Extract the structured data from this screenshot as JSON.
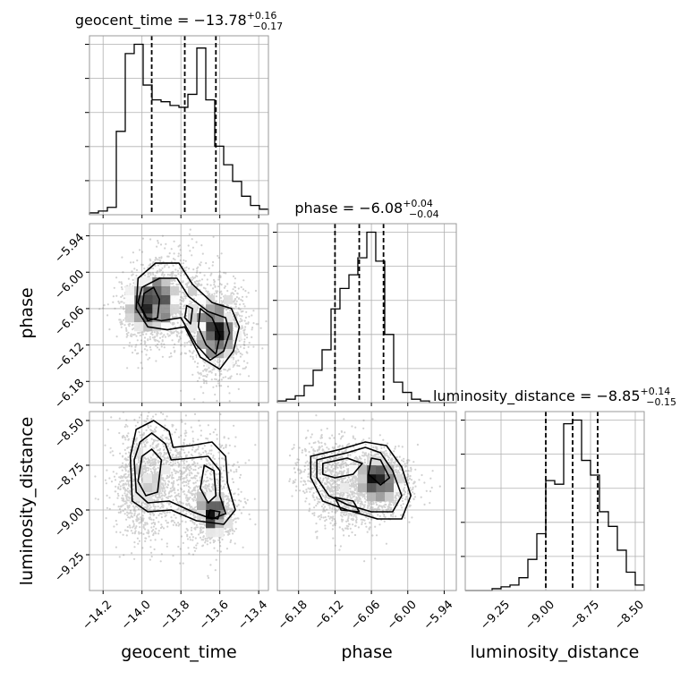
{
  "chart_data": {
    "type": "corner",
    "parameters": [
      {
        "name": "geocent_time",
        "axis_label": "geocent_time",
        "title": {
          "prefix": "geocent_time = ",
          "value": "−13.78",
          "plus": "+0.16",
          "minus": "−0.17"
        },
        "range": [
          -14.27,
          -13.35
        ],
        "ticks": [
          -14.2,
          -14.0,
          -13.8,
          -13.6,
          -13.4
        ],
        "tick_labels": [
          "−14.2",
          "−14.0",
          "−13.8",
          "−13.6",
          "−13.4"
        ],
        "quantiles": [
          -13.95,
          -13.78,
          -13.62
        ],
        "hist": {
          "edges": [
            -14.27,
            -14.224,
            -14.178,
            -14.132,
            -14.086,
            -14.04,
            -13.994,
            -13.948,
            -13.902,
            -13.856,
            -13.81,
            -13.764,
            -13.718,
            -13.672,
            -13.626,
            -13.58,
            -13.534,
            -13.488,
            -13.442,
            -13.396,
            -13.35
          ],
          "values": [
            0.01,
            0.02,
            0.04,
            0.45,
            0.87,
            0.92,
            0.7,
            0.62,
            0.61,
            0.59,
            0.58,
            0.65,
            0.9,
            0.62,
            0.37,
            0.27,
            0.18,
            0.1,
            0.05,
            0.03
          ]
        }
      },
      {
        "name": "phase",
        "axis_label": "phase",
        "title": {
          "prefix": "phase = ",
          "value": "−6.08",
          "plus": "+0.04",
          "minus": "−0.04"
        },
        "range": [
          -6.215,
          -5.92
        ],
        "ticks": [
          -6.18,
          -6.12,
          -6.06,
          -6.0,
          -5.94
        ],
        "tick_labels": [
          "−6.18",
          "−6.12",
          "−6.06",
          "−6.00",
          "−5.94"
        ],
        "quantiles": [
          -6.12,
          -6.08,
          -6.04
        ],
        "hist": {
          "edges": [
            -6.215,
            -6.2003,
            -6.1855,
            -6.1708,
            -6.156,
            -6.1413,
            -6.1265,
            -6.1118,
            -6.097,
            -6.0823,
            -6.0675,
            -6.0528,
            -6.038,
            -6.0233,
            -6.0085,
            -5.9938,
            -5.979,
            -5.9643,
            -5.9495,
            -5.9348,
            -5.92
          ],
          "values": [
            0.01,
            0.02,
            0.04,
            0.1,
            0.19,
            0.31,
            0.55,
            0.67,
            0.75,
            0.85,
            1.0,
            0.83,
            0.4,
            0.12,
            0.06,
            0.02,
            0.01,
            0,
            0,
            0
          ]
        }
      },
      {
        "name": "luminosity_distance",
        "axis_label": "luminosity_distance",
        "title": {
          "prefix": "luminosity_distance = ",
          "value": "−8.85",
          "plus": "+0.14",
          "minus": "−0.15"
        },
        "range": [
          -9.45,
          -8.45
        ],
        "ticks": [
          -9.25,
          -9.0,
          -8.75,
          -8.5
        ],
        "tick_labels": [
          "−9.25",
          "−9.00",
          "−8.75",
          "−8.50"
        ],
        "quantiles": [
          -9.0,
          -8.85,
          -8.71
        ],
        "hist": {
          "edges": [
            -9.45,
            -9.4,
            -9.35,
            -9.3,
            -9.25,
            -9.2,
            -9.15,
            -9.1,
            -9.05,
            -9.0,
            -8.95,
            -8.9,
            -8.85,
            -8.8,
            -8.75,
            -8.7,
            -8.65,
            -8.6,
            -8.55,
            -8.5,
            -8.45
          ],
          "values": [
            0,
            0,
            0,
            0.01,
            0.02,
            0.03,
            0.07,
            0.17,
            0.31,
            0.6,
            0.58,
            0.91,
            0.93,
            0.71,
            0.63,
            0.43,
            0.35,
            0.22,
            0.1,
            0.03
          ]
        }
      }
    ],
    "pairs": [
      {
        "x": "geocent_time",
        "y": "phase",
        "blobs": [
          {
            "cx": -13.98,
            "cy": -6.06,
            "sx": 0.05,
            "sy": 0.022,
            "w": 1.0
          },
          {
            "cx": -13.88,
            "cy": -6.04,
            "sx": 0.07,
            "sy": 0.03,
            "w": 0.7
          },
          {
            "cx": -13.72,
            "cy": -6.06,
            "sx": 0.07,
            "sy": 0.028,
            "w": 0.55
          },
          {
            "cx": -13.62,
            "cy": -6.11,
            "sx": 0.05,
            "sy": 0.028,
            "w": 0.9
          },
          {
            "cx": -13.57,
            "cy": -6.09,
            "sx": 0.05,
            "sy": 0.025,
            "w": 0.4
          }
        ],
        "contours": [
          [
            [
              -14.02,
              -6.01
            ],
            [
              -13.93,
              -5.985
            ],
            [
              -13.81,
              -5.985
            ],
            [
              -13.74,
              -6.02
            ],
            [
              -13.64,
              -6.05
            ],
            [
              -13.54,
              -6.06
            ],
            [
              -13.5,
              -6.09
            ],
            [
              -13.53,
              -6.13
            ],
            [
              -13.6,
              -6.16
            ],
            [
              -13.7,
              -6.14
            ],
            [
              -13.78,
              -6.09
            ],
            [
              -13.87,
              -6.095
            ],
            [
              -13.97,
              -6.09
            ],
            [
              -14.03,
              -6.06
            ]
          ],
          [
            [
              -14.0,
              -6.025
            ],
            [
              -13.91,
              -6.01
            ],
            [
              -13.82,
              -6.01
            ],
            [
              -13.76,
              -6.04
            ],
            [
              -13.66,
              -6.065
            ],
            [
              -13.57,
              -6.075
            ],
            [
              -13.55,
              -6.1
            ],
            [
              -13.58,
              -6.13
            ],
            [
              -13.65,
              -6.145
            ],
            [
              -13.72,
              -6.12
            ],
            [
              -13.8,
              -6.075
            ],
            [
              -13.9,
              -6.08
            ],
            [
              -13.98,
              -6.075
            ],
            [
              -14.02,
              -6.05
            ]
          ],
          [
            [
              -13.99,
              -6.035
            ],
            [
              -13.94,
              -6.025
            ],
            [
              -13.91,
              -6.045
            ],
            [
              -13.92,
              -6.075
            ],
            [
              -13.97,
              -6.08
            ],
            [
              -14.0,
              -6.06
            ]
          ],
          [
            [
              -13.7,
              -6.06
            ],
            [
              -13.64,
              -6.075
            ],
            [
              -13.6,
              -6.105
            ],
            [
              -13.62,
              -6.135
            ],
            [
              -13.67,
              -6.12
            ],
            [
              -13.71,
              -6.09
            ]
          ],
          [
            [
              -13.77,
              -6.055
            ],
            [
              -13.74,
              -6.06
            ],
            [
              -13.75,
              -6.085
            ],
            [
              -13.78,
              -6.075
            ]
          ]
        ]
      },
      {
        "x": "geocent_time",
        "y": "luminosity_distance",
        "blobs": [
          {
            "cx": -14.0,
            "cy": -8.85,
            "sx": 0.05,
            "sy": 0.12,
            "w": 1.0
          },
          {
            "cx": -13.88,
            "cy": -8.8,
            "sx": 0.08,
            "sy": 0.12,
            "w": 0.65
          },
          {
            "cx": -13.68,
            "cy": -8.88,
            "sx": 0.07,
            "sy": 0.12,
            "w": 0.6
          },
          {
            "cx": -13.63,
            "cy": -9.03,
            "sx": 0.04,
            "sy": 0.05,
            "w": 0.8
          }
        ],
        "contours": [
          [
            [
              -14.03,
              -8.55
            ],
            [
              -13.94,
              -8.5
            ],
            [
              -13.86,
              -8.56
            ],
            [
              -13.84,
              -8.65
            ],
            [
              -13.75,
              -8.64
            ],
            [
              -13.64,
              -8.62
            ],
            [
              -13.57,
              -8.7
            ],
            [
              -13.56,
              -8.85
            ],
            [
              -13.52,
              -9.0
            ],
            [
              -13.58,
              -9.08
            ],
            [
              -13.72,
              -9.06
            ],
            [
              -13.85,
              -9.0
            ],
            [
              -13.97,
              -9.01
            ],
            [
              -14.05,
              -8.95
            ],
            [
              -14.06,
              -8.7
            ]
          ],
          [
            [
              -14.01,
              -8.62
            ],
            [
              -13.95,
              -8.57
            ],
            [
              -13.88,
              -8.63
            ],
            [
              -13.85,
              -8.72
            ],
            [
              -13.75,
              -8.71
            ],
            [
              -13.66,
              -8.7
            ],
            [
              -13.6,
              -8.78
            ],
            [
              -13.6,
              -8.92
            ],
            [
              -13.57,
              -9.02
            ],
            [
              -13.64,
              -9.05
            ],
            [
              -13.74,
              -9.01
            ],
            [
              -13.86,
              -8.95
            ],
            [
              -13.97,
              -8.96
            ],
            [
              -14.03,
              -8.9
            ],
            [
              -14.04,
              -8.72
            ]
          ],
          [
            [
              -14.0,
              -8.7
            ],
            [
              -13.95,
              -8.66
            ],
            [
              -13.9,
              -8.72
            ],
            [
              -13.92,
              -8.9
            ],
            [
              -13.98,
              -8.92
            ],
            [
              -14.02,
              -8.84
            ]
          ],
          [
            [
              -13.68,
              -8.75
            ],
            [
              -13.63,
              -8.78
            ],
            [
              -13.62,
              -8.92
            ],
            [
              -13.66,
              -8.96
            ],
            [
              -13.7,
              -8.88
            ]
          ],
          [
            [
              -13.65,
              -9.0
            ],
            [
              -13.6,
              -9.01
            ],
            [
              -13.61,
              -9.05
            ],
            [
              -13.66,
              -9.04
            ]
          ]
        ]
      },
      {
        "x": "phase",
        "y": "luminosity_distance",
        "blobs": [
          {
            "cx": -6.13,
            "cy": -8.78,
            "sx": 0.02,
            "sy": 0.07,
            "w": 0.6
          },
          {
            "cx": -6.08,
            "cy": -8.85,
            "sx": 0.025,
            "sy": 0.09,
            "w": 0.7
          },
          {
            "cx": -6.05,
            "cy": -8.81,
            "sx": 0.015,
            "sy": 0.05,
            "w": 1.0
          },
          {
            "cx": -6.035,
            "cy": -8.88,
            "sx": 0.02,
            "sy": 0.05,
            "w": 0.6
          },
          {
            "cx": -6.1,
            "cy": -8.98,
            "sx": 0.02,
            "sy": 0.05,
            "w": 0.4
          }
        ],
        "contours": [
          [
            [
              -6.16,
              -8.7
            ],
            [
              -6.11,
              -8.66
            ],
            [
              -6.07,
              -8.62
            ],
            [
              -6.035,
              -8.64
            ],
            [
              -6.01,
              -8.76
            ],
            [
              -5.995,
              -8.92
            ],
            [
              -6.01,
              -9.05
            ],
            [
              -6.05,
              -9.05
            ],
            [
              -6.1,
              -9.0
            ],
            [
              -6.14,
              -8.95
            ],
            [
              -6.16,
              -8.82
            ]
          ],
          [
            [
              -6.15,
              -8.72
            ],
            [
              -6.1,
              -8.68
            ],
            [
              -6.07,
              -8.65
            ],
            [
              -6.045,
              -8.68
            ],
            [
              -6.025,
              -8.78
            ],
            [
              -6.01,
              -8.92
            ],
            [
              -6.025,
              -9.01
            ],
            [
              -6.06,
              -9.01
            ],
            [
              -6.1,
              -8.97
            ],
            [
              -6.13,
              -8.92
            ],
            [
              -6.15,
              -8.82
            ]
          ],
          [
            [
              -6.14,
              -8.74
            ],
            [
              -6.1,
              -8.71
            ],
            [
              -6.075,
              -8.74
            ],
            [
              -6.09,
              -8.8
            ],
            [
              -6.12,
              -8.82
            ],
            [
              -6.14,
              -8.8
            ]
          ],
          [
            [
              -6.06,
              -8.71
            ],
            [
              -6.045,
              -8.72
            ],
            [
              -6.03,
              -8.82
            ],
            [
              -6.045,
              -8.86
            ],
            [
              -6.065,
              -8.8
            ]
          ],
          [
            [
              -6.12,
              -8.93
            ],
            [
              -6.09,
              -8.95
            ],
            [
              -6.08,
              -9.01
            ],
            [
              -6.11,
              -9.0
            ]
          ]
        ]
      }
    ]
  }
}
